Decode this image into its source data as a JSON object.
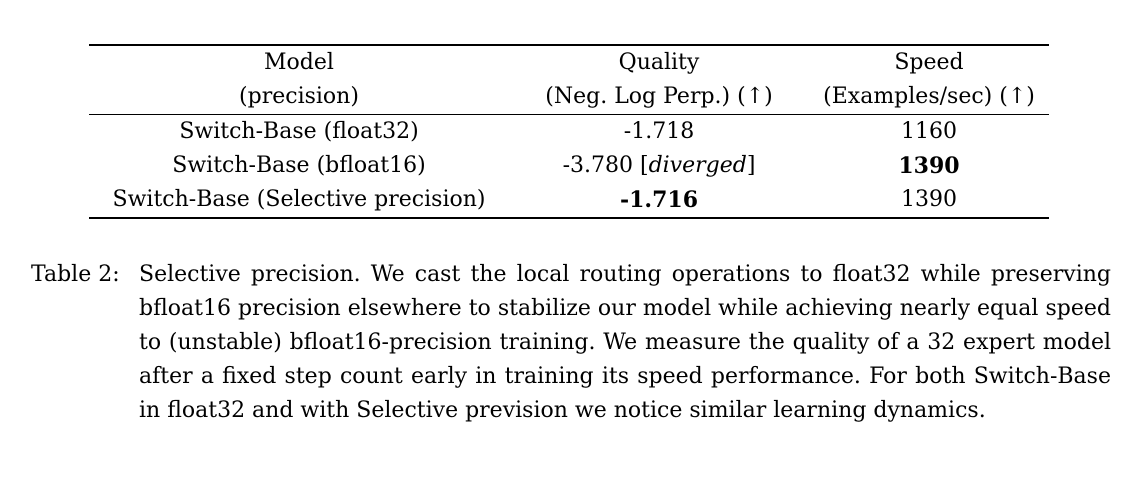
{
  "table": {
    "headers": [
      {
        "line1": "Model",
        "line2": "(precision)"
      },
      {
        "line1": "Quality",
        "line2": "(Neg. Log Perp.) (↑)"
      },
      {
        "line1": "Speed",
        "line2": "(Examples/sec) (↑)"
      }
    ],
    "rows": [
      {
        "model": "Switch-Base (float32)",
        "quality": "-1.718",
        "quality_note": "",
        "speed": "1160"
      },
      {
        "model": "Switch-Base (bfloat16)",
        "quality": "-3.780 [",
        "quality_note": "diverged",
        "quality_close": "]",
        "speed": "1390"
      },
      {
        "model": "Switch-Base (Selective precision)",
        "quality": "-1.716",
        "quality_note": "",
        "speed": "1390"
      }
    ]
  },
  "caption": {
    "label": "Table 2:",
    "text": "Selective precision. We cast the local routing operations to float32 while preserving bfloat16 precision elsewhere to stabilize our model while achieving nearly equal speed to (unstable) bfloat16-precision training. We measure the quality of a 32 expert model after a fixed step count early in training its speed performance. For both Switch-Base in float32 and with Selective prevision we notice similar learning dynamics."
  }
}
